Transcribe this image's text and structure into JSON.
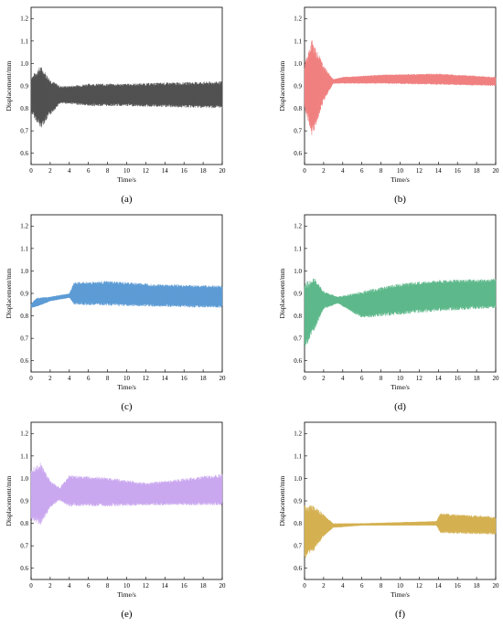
{
  "chart_data": [
    {
      "type": "line",
      "caption": "(a)",
      "xlabel": "Time/s",
      "ylabel": "Displacement/mm",
      "xlim": [
        0,
        20
      ],
      "ylim": [
        0.55,
        1.25
      ],
      "xticks": [
        "0",
        "2",
        "4",
        "6",
        "8",
        "10",
        "12",
        "14",
        "16",
        "18",
        "20"
      ],
      "yticks": [
        "0.6",
        "0.7",
        "0.8",
        "0.9",
        "1.0",
        "1.1",
        "1.2"
      ],
      "color": "#505050",
      "series": [
        {
          "segments": [
            {
              "t": 0.0,
              "center": 0.86,
              "amplitude": 0.08
            },
            {
              "t": 1.0,
              "center": 0.85,
              "amplitude": 0.14
            },
            {
              "t": 2.0,
              "center": 0.85,
              "amplitude": 0.08
            },
            {
              "t": 3.0,
              "center": 0.86,
              "amplitude": 0.04
            },
            {
              "t": 4.0,
              "center": 0.86,
              "amplitude": 0.04
            },
            {
              "t": 6.0,
              "center": 0.86,
              "amplitude": 0.05
            },
            {
              "t": 10.0,
              "center": 0.86,
              "amplitude": 0.05
            },
            {
              "t": 14.0,
              "center": 0.86,
              "amplitude": 0.055
            },
            {
              "t": 20.0,
              "center": 0.86,
              "amplitude": 0.06
            }
          ]
        }
      ]
    },
    {
      "type": "line",
      "caption": "(b)",
      "xlabel": "Time/s",
      "ylabel": "Displacement/mm",
      "xlim": [
        0,
        20
      ],
      "ylim": [
        0.55,
        1.25
      ],
      "xticks": [
        "0",
        "2",
        "4",
        "6",
        "8",
        "10",
        "12",
        "14",
        "16",
        "18",
        "20"
      ],
      "yticks": [
        "0.6",
        "0.7",
        "0.8",
        "0.9",
        "1.0",
        "1.1",
        "1.2"
      ],
      "color": "#f08080",
      "series": [
        {
          "segments": [
            {
              "t": 0.0,
              "center": 0.9,
              "amplitude": 0.1
            },
            {
              "t": 0.8,
              "center": 0.89,
              "amplitude": 0.22
            },
            {
              "t": 2.0,
              "center": 0.91,
              "amplitude": 0.08
            },
            {
              "t": 3.0,
              "center": 0.92,
              "amplitude": 0.01
            },
            {
              "t": 4.0,
              "center": 0.925,
              "amplitude": 0.015
            },
            {
              "t": 8.0,
              "center": 0.93,
              "amplitude": 0.02
            },
            {
              "t": 14.0,
              "center": 0.93,
              "amplitude": 0.025
            },
            {
              "t": 20.0,
              "center": 0.92,
              "amplitude": 0.02
            }
          ]
        }
      ]
    },
    {
      "type": "line",
      "caption": "(c)",
      "xlabel": "Time/s",
      "ylabel": "Displacement/mm",
      "xlim": [
        0,
        20
      ],
      "ylim": [
        0.55,
        1.25
      ],
      "xticks": [
        "0",
        "2",
        "4",
        "6",
        "8",
        "10",
        "12",
        "14",
        "16",
        "18",
        "20"
      ],
      "yticks": [
        "0.6",
        "0.7",
        "0.8",
        "0.9",
        "1.0",
        "1.1",
        "1.2"
      ],
      "color": "#5b9bd5",
      "series": [
        {
          "segments": [
            {
              "t": 0.0,
              "center": 0.845,
              "amplitude": 0.01
            },
            {
              "t": 0.6,
              "center": 0.86,
              "amplitude": 0.02
            },
            {
              "t": 2.0,
              "center": 0.875,
              "amplitude": 0.01
            },
            {
              "t": 4.0,
              "center": 0.89,
              "amplitude": 0.01
            },
            {
              "t": 4.5,
              "center": 0.9,
              "amplitude": 0.05
            },
            {
              "t": 8.0,
              "center": 0.9,
              "amplitude": 0.055
            },
            {
              "t": 14.0,
              "center": 0.89,
              "amplitude": 0.05
            },
            {
              "t": 20.0,
              "center": 0.885,
              "amplitude": 0.05
            }
          ]
        }
      ]
    },
    {
      "type": "line",
      "caption": "(d)",
      "xlabel": "Time/s",
      "ylabel": "Displacement/mm",
      "xlim": [
        0,
        20
      ],
      "ylim": [
        0.55,
        1.25
      ],
      "xticks": [
        "0",
        "2",
        "4",
        "6",
        "8",
        "10",
        "12",
        "14",
        "16",
        "18",
        "20"
      ],
      "yticks": [
        "0.6",
        "0.7",
        "0.8",
        "0.9",
        "1.0",
        "1.1",
        "1.2"
      ],
      "color": "#5cb88a",
      "series": [
        {
          "segments": [
            {
              "t": 0.0,
              "center": 0.8,
              "amplitude": 0.15
            },
            {
              "t": 1.0,
              "center": 0.85,
              "amplitude": 0.12
            },
            {
              "t": 2.0,
              "center": 0.87,
              "amplitude": 0.04
            },
            {
              "t": 3.5,
              "center": 0.87,
              "amplitude": 0.015
            },
            {
              "t": 6.0,
              "center": 0.85,
              "amplitude": 0.06
            },
            {
              "t": 10.0,
              "center": 0.875,
              "amplitude": 0.07
            },
            {
              "t": 14.0,
              "center": 0.89,
              "amplitude": 0.07
            },
            {
              "t": 20.0,
              "center": 0.9,
              "amplitude": 0.065
            }
          ]
        }
      ]
    },
    {
      "type": "line",
      "caption": "(e)",
      "xlabel": "Time/s",
      "ylabel": "Displacement/mm",
      "xlim": [
        0,
        20
      ],
      "ylim": [
        0.55,
        1.25
      ],
      "xticks": [
        "0",
        "2",
        "4",
        "6",
        "8",
        "10",
        "12",
        "14",
        "16",
        "18",
        "20"
      ],
      "yticks": [
        "0.6",
        "0.7",
        "0.8",
        "0.9",
        "1.0",
        "1.1",
        "1.2"
      ],
      "color": "#c9a7ef",
      "series": [
        {
          "segments": [
            {
              "t": 0.0,
              "center": 0.93,
              "amplitude": 0.12
            },
            {
              "t": 1.0,
              "center": 0.93,
              "amplitude": 0.14
            },
            {
              "t": 2.0,
              "center": 0.93,
              "amplitude": 0.06
            },
            {
              "t": 3.0,
              "center": 0.93,
              "amplitude": 0.03
            },
            {
              "t": 4.0,
              "center": 0.945,
              "amplitude": 0.07
            },
            {
              "t": 8.0,
              "center": 0.94,
              "amplitude": 0.065
            },
            {
              "t": 12.0,
              "center": 0.93,
              "amplitude": 0.05
            },
            {
              "t": 16.0,
              "center": 0.94,
              "amplitude": 0.06
            },
            {
              "t": 20.0,
              "center": 0.95,
              "amplitude": 0.07
            }
          ]
        }
      ]
    },
    {
      "type": "line",
      "caption": "(f)",
      "xlabel": "Time/s",
      "ylabel": "Displacement/mm",
      "xlim": [
        0,
        20
      ],
      "ylim": [
        0.55,
        1.25
      ],
      "xticks": [
        "0",
        "2",
        "4",
        "6",
        "8",
        "10",
        "12",
        "14",
        "16",
        "18",
        "20"
      ],
      "yticks": [
        "0.6",
        "0.7",
        "0.8",
        "0.9",
        "1.0",
        "1.1",
        "1.2"
      ],
      "color": "#d4b050",
      "series": [
        {
          "segments": [
            {
              "t": 0.0,
              "center": 0.76,
              "amplitude": 0.12
            },
            {
              "t": 1.0,
              "center": 0.78,
              "amplitude": 0.1
            },
            {
              "t": 2.0,
              "center": 0.79,
              "amplitude": 0.05
            },
            {
              "t": 3.0,
              "center": 0.79,
              "amplitude": 0.01
            },
            {
              "t": 6.0,
              "center": 0.795,
              "amplitude": 0.005
            },
            {
              "t": 13.8,
              "center": 0.8,
              "amplitude": 0.01
            },
            {
              "t": 14.2,
              "center": 0.8,
              "amplitude": 0.045
            },
            {
              "t": 20.0,
              "center": 0.79,
              "amplitude": 0.04
            }
          ]
        }
      ]
    }
  ]
}
